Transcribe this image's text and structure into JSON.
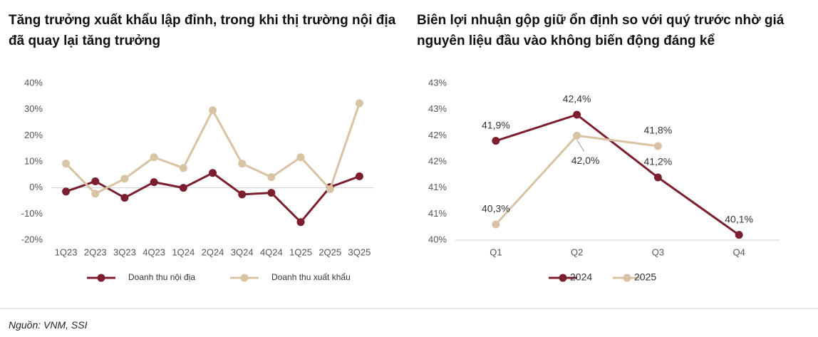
{
  "chart_data": [
    {
      "type": "line",
      "title": "Tăng trưởng xuất khẩu lập đỉnh, trong khi thị trường nội địa đã quay lại tăng trưởng",
      "categories": [
        "1Q23",
        "2Q23",
        "3Q23",
        "4Q23",
        "1Q24",
        "2Q24",
        "3Q24",
        "4Q24",
        "1Q25",
        "2Q25",
        "3Q25"
      ],
      "series": [
        {
          "name": "Doanh thu nội địa",
          "color": "#7b1f2e",
          "values": [
            -1.4,
            2.5,
            -3.8,
            2.2,
            0,
            5.7,
            -2.5,
            -1.9,
            -13.1,
            0.3,
            4.4
          ]
        },
        {
          "name": "Doanh thu xuất khẩu",
          "color": "#d8c3a5",
          "values": [
            9.3,
            -2.2,
            3.5,
            11.7,
            7.6,
            29.7,
            9.3,
            4.1,
            11.7,
            -0.5,
            32.4
          ]
        }
      ],
      "ylim": [
        -20,
        40
      ],
      "yticks": [
        {
          "value": -20,
          "label": "-20%"
        },
        {
          "value": -10,
          "label": "-10%"
        },
        {
          "value": 0,
          "label": "0%"
        },
        {
          "value": 10,
          "label": "10%"
        },
        {
          "value": 20,
          "label": "20%"
        },
        {
          "value": 30,
          "label": "30%"
        },
        {
          "value": 40,
          "label": "40%"
        }
      ],
      "legend": "bottom"
    },
    {
      "type": "line",
      "title": "Biên lợi nhuận gộp giữ ổn định so với quý trước nhờ giá nguyên liệu đầu vào không biến động đáng kể",
      "categories": [
        "Q1",
        "Q2",
        "Q3",
        "Q4"
      ],
      "series": [
        {
          "name": "2024",
          "color": "#7b1f2e",
          "values": [
            41.9,
            42.4,
            41.2,
            40.1
          ],
          "value_labels": [
            "41,9%",
            "42,4%",
            "41,2%",
            "40,1%"
          ]
        },
        {
          "name": "2025",
          "color": "#d8c3a5",
          "values": [
            40.3,
            42.0,
            41.8,
            null
          ],
          "value_labels": [
            "40,3%",
            "42,0%",
            "41,8%",
            null
          ]
        }
      ],
      "ylim": [
        40,
        43
      ],
      "yticks": [
        {
          "value": 40,
          "label": "40%"
        },
        {
          "value": 40.5,
          "label": "41%"
        },
        {
          "value": 41,
          "label": "41%"
        },
        {
          "value": 41.5,
          "label": "42%"
        },
        {
          "value": 42,
          "label": "42%"
        },
        {
          "value": 42.5,
          "label": "43%"
        },
        {
          "value": 43,
          "label": "43%"
        }
      ],
      "legend": "bottom"
    }
  ],
  "source": "Nguồn: VNM, SSI"
}
